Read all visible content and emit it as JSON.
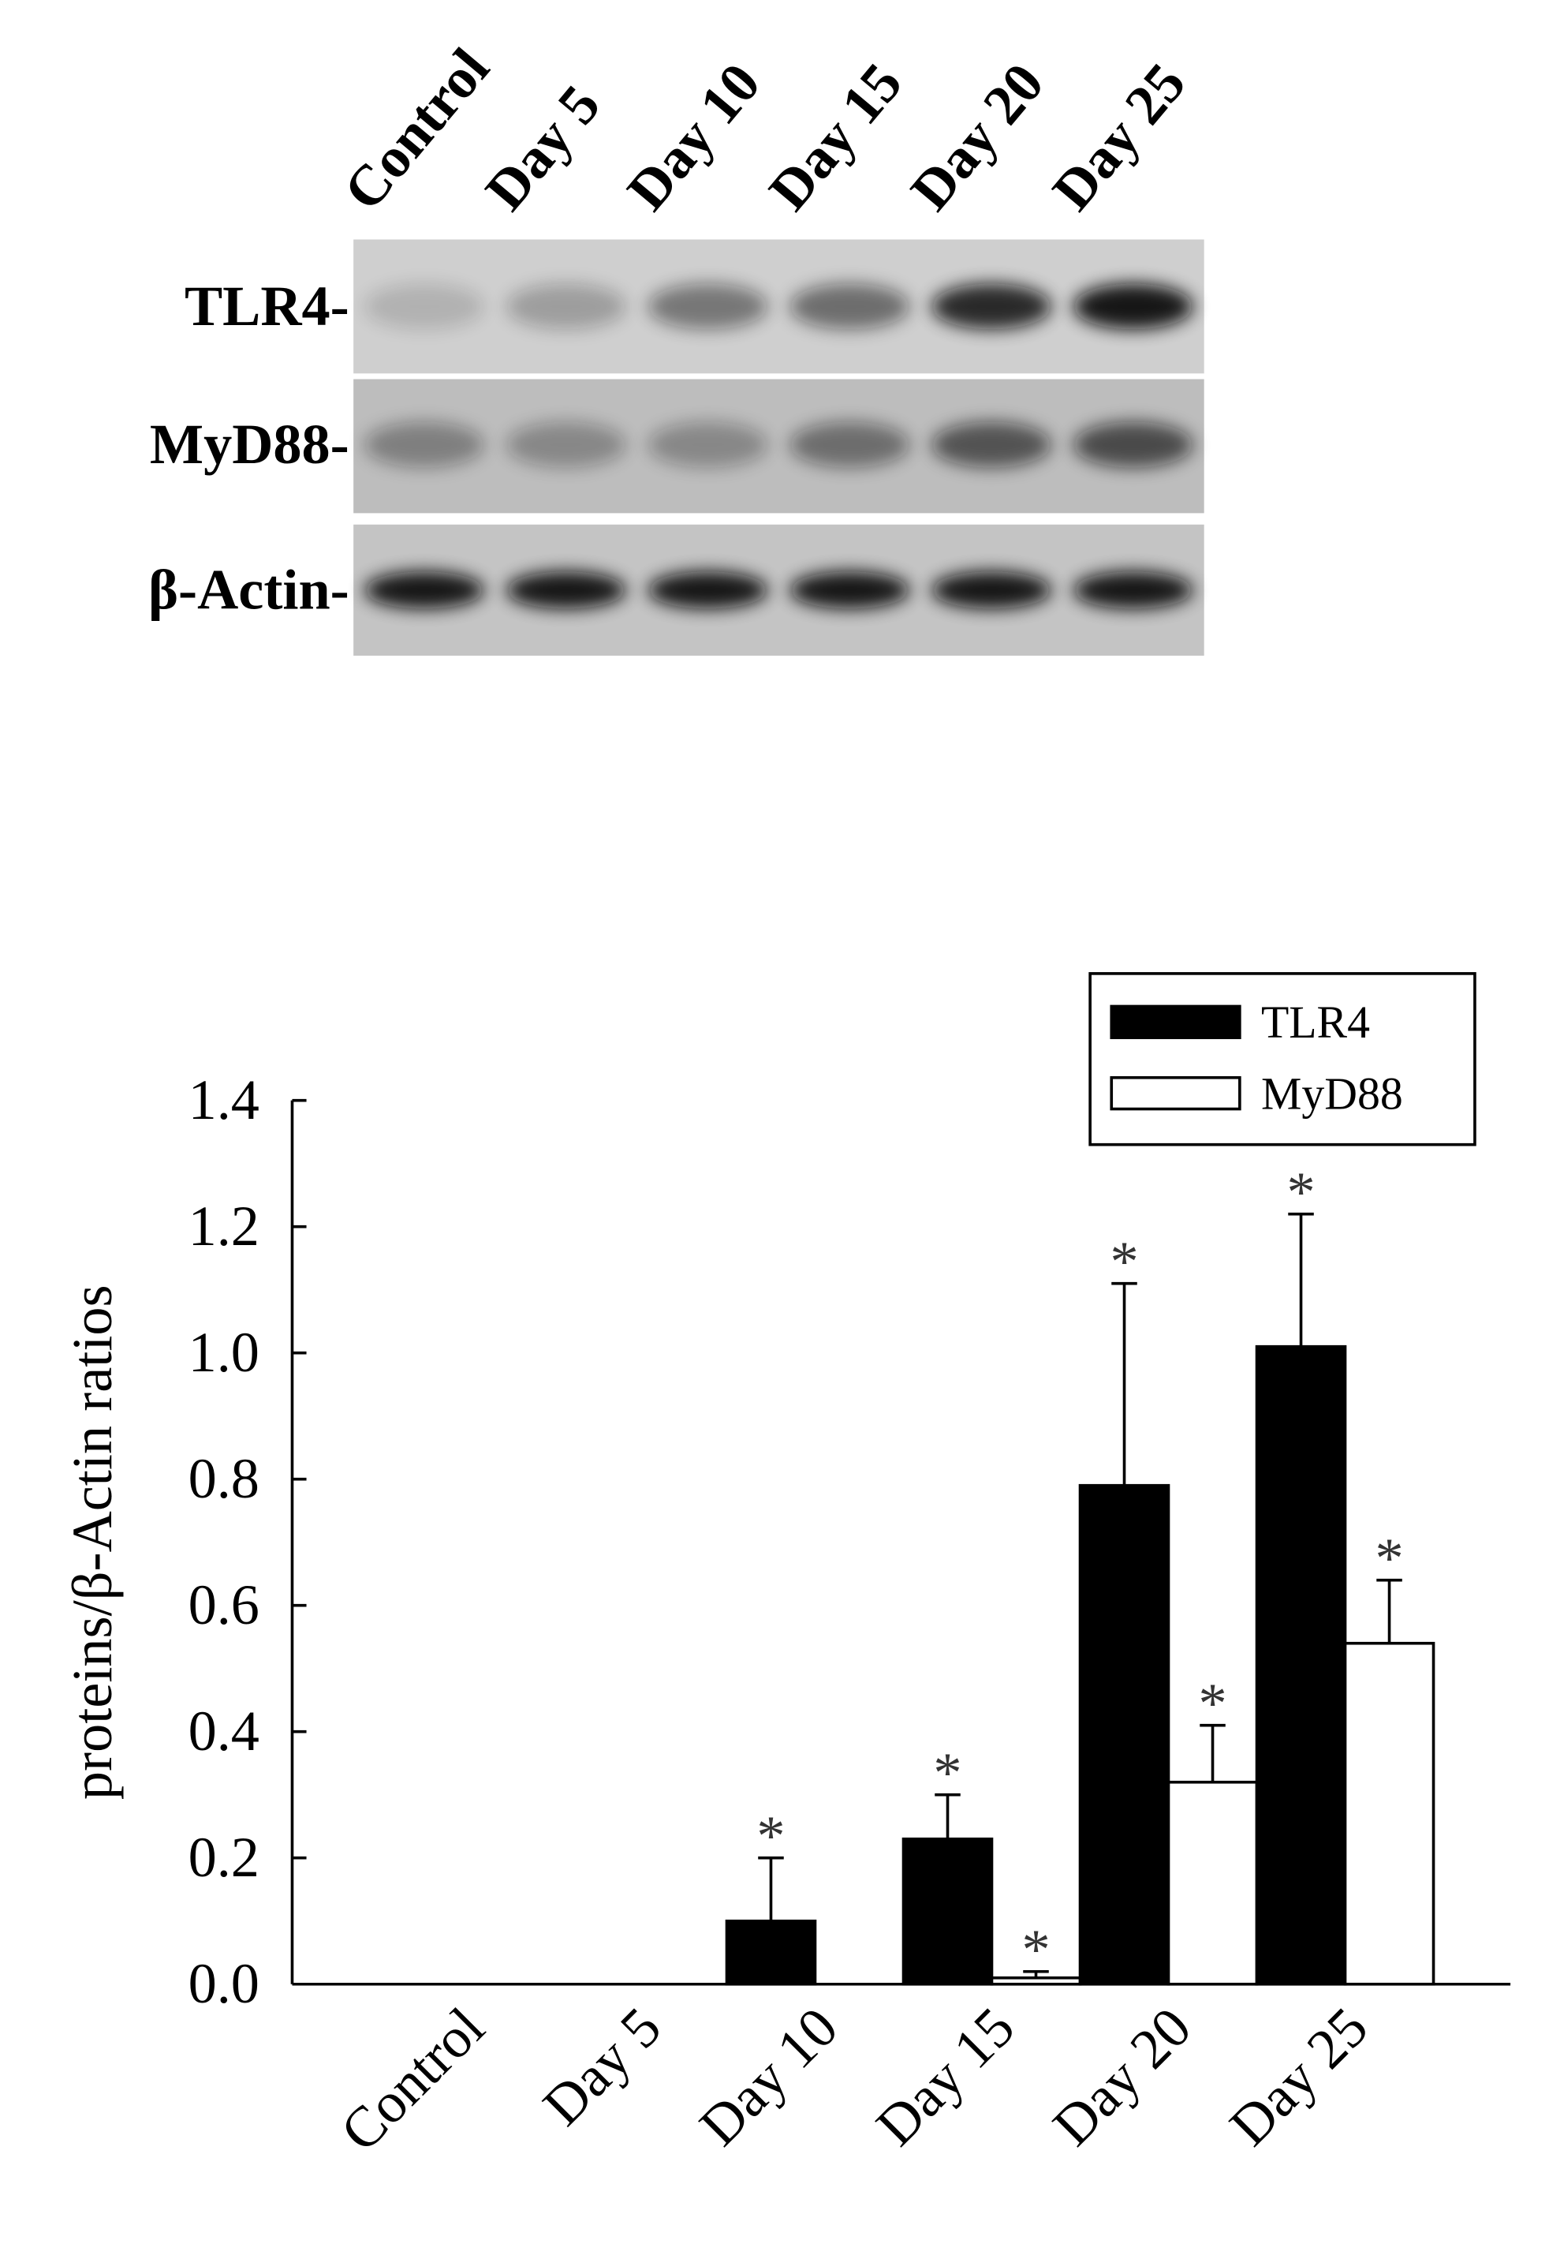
{
  "blot": {
    "lanes": [
      "Control",
      "Day 5",
      "Day 10",
      "Day 15",
      "Day 20",
      "Day 25"
    ],
    "rows": [
      "TLR4-",
      "MyD88-",
      "β-Actin-"
    ]
  },
  "chart_data": {
    "type": "bar",
    "ylabel": "proteins/β-Actin ratios",
    "categories": [
      "Control",
      "Day 5",
      "Day 10",
      "Day 15",
      "Day 20",
      "Day 25"
    ],
    "series": [
      {
        "name": "TLR4",
        "color": "#000000",
        "values": [
          0,
          0,
          0.1,
          0.23,
          0.79,
          1.01
        ],
        "errors": [
          0,
          0,
          0.1,
          0.07,
          0.32,
          0.21
        ],
        "annotations": [
          null,
          null,
          "*",
          "*",
          "*",
          "*"
        ]
      },
      {
        "name": "MyD88",
        "color": "#ffffff",
        "values": [
          0,
          0,
          0,
          0.01,
          0.32,
          0.54
        ],
        "errors": [
          0,
          0,
          0,
          0.01,
          0.09,
          0.1
        ],
        "annotations": [
          null,
          null,
          null,
          "*",
          "*",
          "*"
        ]
      }
    ],
    "ylim": [
      0,
      1.4
    ],
    "yticks": [
      {
        "value": 0,
        "label": "0.0"
      },
      0.2,
      0.4,
      0.6,
      0.8,
      {
        "value": 1,
        "label": "1.0"
      },
      1.2,
      1.4
    ],
    "legend": "upper right"
  }
}
